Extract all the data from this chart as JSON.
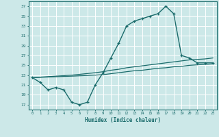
{
  "xlabel": "Humidex (Indice chaleur)",
  "xlim": [
    -0.5,
    23.5
  ],
  "ylim": [
    16.0,
    38.0
  ],
  "yticks": [
    17,
    19,
    21,
    23,
    25,
    27,
    29,
    31,
    33,
    35,
    37
  ],
  "xticks": [
    0,
    1,
    2,
    3,
    4,
    5,
    6,
    7,
    8,
    9,
    10,
    11,
    12,
    13,
    14,
    15,
    16,
    17,
    18,
    19,
    20,
    21,
    22,
    23
  ],
  "bg_color": "#cce8e8",
  "line_color": "#1a6b6b",
  "grid_color": "#ffffff",
  "main_curve_x": [
    0,
    1,
    2,
    3,
    4,
    5,
    6,
    7,
    8,
    9,
    10,
    11,
    12,
    13,
    14,
    15,
    16,
    17,
    18,
    19,
    20,
    21,
    22,
    23
  ],
  "main_curve_y": [
    22.5,
    21.5,
    20.0,
    20.5,
    20.0,
    17.5,
    17.0,
    17.5,
    21.0,
    23.5,
    26.5,
    29.5,
    33.0,
    34.0,
    34.5,
    35.0,
    35.5,
    37.0,
    35.5,
    27.0,
    26.5,
    25.5,
    25.5,
    25.5
  ],
  "line2_x": [
    0,
    5,
    8,
    9,
    10,
    11,
    12,
    13,
    14,
    15,
    16,
    17,
    18,
    19,
    20,
    21,
    22,
    23
  ],
  "line2_y": [
    22.5,
    23.0,
    23.5,
    23.7,
    24.0,
    24.2,
    24.5,
    24.7,
    24.9,
    25.1,
    25.3,
    25.5,
    25.7,
    25.9,
    26.1,
    26.2,
    26.3,
    26.5
  ],
  "line3_x": [
    0,
    5,
    8,
    9,
    10,
    11,
    12,
    13,
    14,
    15,
    16,
    17,
    18,
    19,
    20,
    21,
    22,
    23
  ],
  "line3_y": [
    22.5,
    22.8,
    23.0,
    23.1,
    23.3,
    23.5,
    23.7,
    23.9,
    24.0,
    24.2,
    24.4,
    24.5,
    24.7,
    24.8,
    25.0,
    25.1,
    25.2,
    25.3
  ]
}
